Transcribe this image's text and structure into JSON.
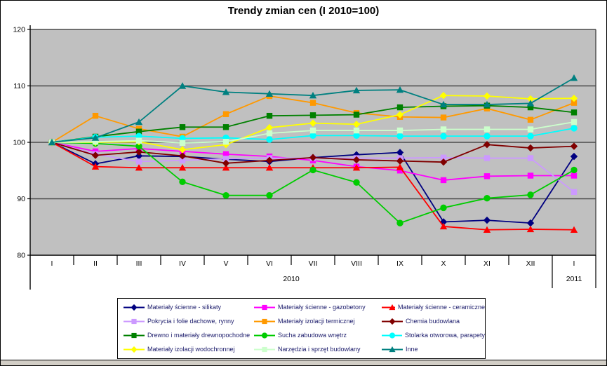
{
  "title": "Trendy zmian cen (I 2010=100)",
  "chart_data": {
    "type": "line",
    "title": "Trendy zmian cen (I 2010=100)",
    "categories": [
      "I",
      "II",
      "III",
      "IV",
      "V",
      "VI",
      "VII",
      "VIII",
      "IX",
      "X",
      "XI",
      "XII",
      "I"
    ],
    "year_groups": [
      {
        "label": "2010",
        "months": 12
      },
      {
        "label": "2011",
        "months": 1
      }
    ],
    "ylim": [
      80,
      120
    ],
    "yticks": [
      80,
      90,
      100,
      110,
      120
    ],
    "grid": true,
    "legend_position": "bottom",
    "plot_bg": "#c0c0c0",
    "series": [
      {
        "name": "Materiały ścienne - silikaty",
        "color": "#000080",
        "marker": "diamond",
        "values": [
          100,
          96.2,
          97.6,
          97.5,
          97.0,
          96.6,
          97.3,
          97.8,
          98.2,
          85.9,
          86.2,
          85.7,
          97.5
        ]
      },
      {
        "name": "Materiały ścienne - gazobetony",
        "color": "#ff00ff",
        "marker": "square",
        "values": [
          100,
          98.4,
          98.9,
          98.4,
          97.9,
          97.5,
          96.8,
          95.7,
          95.0,
          93.3,
          94.0,
          94.1,
          94.1
        ]
      },
      {
        "name": "Materiały ścienne - ceramiczne",
        "color": "#ff0000",
        "marker": "triangle",
        "values": [
          100,
          95.7,
          95.5,
          95.5,
          95.5,
          95.5,
          95.5,
          95.5,
          95.6,
          85.1,
          84.5,
          84.6,
          84.5
        ]
      },
      {
        "name": "Pokrycia i folie dachowe, rynny",
        "color": "#cc99ff",
        "marker": "square",
        "values": [
          100,
          97.9,
          96.6,
          96.8,
          97.1,
          97.2,
          97.2,
          97.2,
          97.2,
          97.3,
          97.2,
          97.2,
          91.2
        ]
      },
      {
        "name": "Materiały izolacji termicznej",
        "color": "#ff9900",
        "marker": "square",
        "values": [
          100,
          104.7,
          102.4,
          101.0,
          105.0,
          108.2,
          107.0,
          105.2,
          104.5,
          104.4,
          106.0,
          104.0,
          107.0
        ]
      },
      {
        "name": "Chemia budowlana",
        "color": "#800000",
        "marker": "diamond",
        "values": [
          100,
          97.7,
          98.3,
          97.6,
          96.3,
          96.8,
          97.3,
          96.9,
          96.7,
          96.5,
          99.6,
          99.0,
          99.3
        ]
      },
      {
        "name": "Drewno i materiały drewnopochodne",
        "color": "#008000",
        "marker": "square",
        "values": [
          100,
          101.0,
          101.9,
          102.7,
          102.7,
          104.7,
          104.8,
          104.9,
          106.2,
          106.4,
          106.5,
          106.2,
          105.3
        ]
      },
      {
        "name": "Sucha zabudowa wnętrz",
        "color": "#00cc00",
        "marker": "circle",
        "values": [
          100,
          99.8,
          99.3,
          93.0,
          90.6,
          90.6,
          95.1,
          92.9,
          85.7,
          88.4,
          90.1,
          90.7,
          95.1
        ]
      },
      {
        "name": "Stolarka otworowa, parapety",
        "color": "#00ffff",
        "marker": "circle",
        "values": [
          100,
          100.9,
          101.1,
          100.7,
          100.8,
          100.5,
          101.2,
          101.2,
          101.1,
          101.1,
          101.1,
          101.1,
          102.5
        ]
      },
      {
        "name": "Materiały izolacji wodochronnej",
        "color": "#ffff00",
        "marker": "diamond",
        "values": [
          100,
          100.0,
          100.1,
          98.7,
          99.6,
          102.6,
          103.4,
          103.2,
          104.9,
          108.3,
          108.2,
          107.7,
          107.8
        ]
      },
      {
        "name": "Narzędzia i sprzęt budowlany",
        "color": "#ccffcc",
        "marker": "square",
        "values": [
          100,
          100.1,
          100.3,
          99.9,
          100.1,
          101.6,
          102.1,
          102.1,
          102.1,
          102.3,
          102.3,
          102.3,
          103.6
        ]
      },
      {
        "name": "Inne",
        "color": "#008080",
        "marker": "triangle",
        "values": [
          100,
          100.8,
          103.6,
          110.0,
          108.9,
          108.6,
          108.3,
          109.2,
          109.3,
          106.7,
          106.7,
          106.9,
          111.4
        ]
      }
    ]
  }
}
